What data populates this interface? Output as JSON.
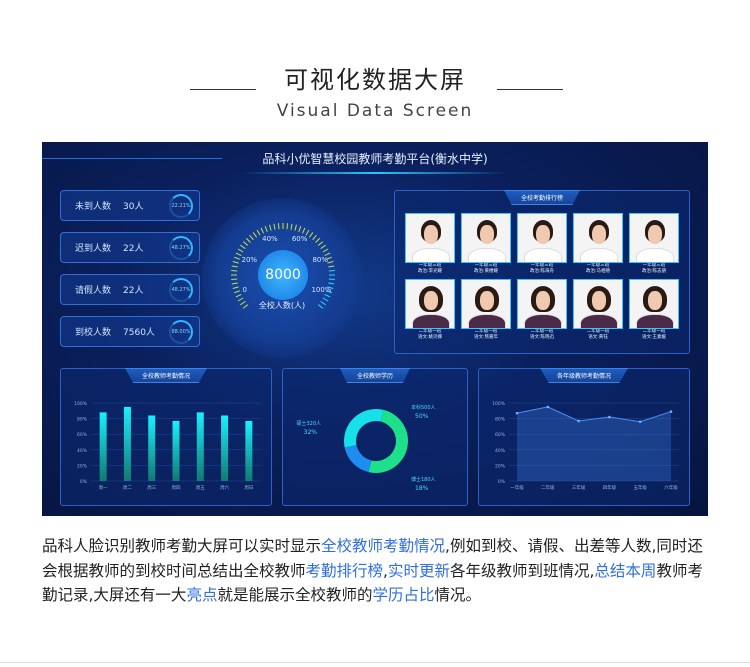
{
  "header": {
    "title": "可视化数据大屏",
    "subtitle": "Visual Data Screen"
  },
  "dashboard": {
    "title": "品科小优智慧校园教师考勤平台(衡水中学)",
    "stats": [
      {
        "label": "未到人数",
        "value": "30人",
        "percent": "22.21%"
      },
      {
        "label": "迟到人数",
        "value": "22人",
        "percent": "48.27%"
      },
      {
        "label": "请假人数",
        "value": "22人",
        "percent": "48.27%"
      },
      {
        "label": "到校人数",
        "value": "7560人",
        "percent": "88.00%"
      }
    ],
    "gauge": {
      "value": "8000",
      "label": "全校人数(人)",
      "ticks": [
        "0",
        "20%",
        "40%",
        "60%",
        "80%",
        "100%"
      ]
    },
    "ranking": {
      "title": "全校考勤排行榜",
      "teachers": [
        {
          "grade": "一年级三班",
          "name": "政治:李光耀",
          "gender": "m"
        },
        {
          "grade": "一年级三班",
          "name": "政治:黄楼耀",
          "gender": "m"
        },
        {
          "grade": "一年级三班",
          "name": "政治:陈海舟",
          "gender": "m"
        },
        {
          "grade": "一年级三班",
          "name": "政治:马相德",
          "gender": "m"
        },
        {
          "grade": "一年级三班",
          "name": "政治:陈志朋",
          "gender": "m"
        },
        {
          "grade": "二年级一班",
          "name": "语文:姚贝娜",
          "gender": "f"
        },
        {
          "grade": "二年级一班",
          "name": "语文:熊嘉年",
          "gender": "f"
        },
        {
          "grade": "二年级一班",
          "name": "语文:陈晓迅",
          "gender": "f"
        },
        {
          "grade": "二年级一班",
          "name": "语文:黄钰",
          "gender": "f"
        },
        {
          "grade": "二年级一班",
          "name": "语文:王素媛",
          "gender": "f"
        }
      ]
    }
  },
  "chart_data": [
    {
      "type": "bar",
      "title": "全校教师考勤情况",
      "categories": [
        "周一",
        "周二",
        "周三",
        "周四",
        "周五",
        "周六",
        "周日"
      ],
      "values": [
        88,
        95,
        84,
        77,
        88,
        84,
        77
      ],
      "yticks": [
        "0%",
        "20%",
        "40%",
        "60%",
        "80%",
        "100%"
      ],
      "ylim": [
        0,
        100
      ],
      "grid": true
    },
    {
      "type": "pie",
      "title": "全校教师学历",
      "slices": [
        {
          "label": "本科500人",
          "percent": "50%",
          "value": 50,
          "color": "#1fe08a"
        },
        {
          "label": "博士180人",
          "percent": "18%",
          "value": 18,
          "color": "#1f8cf0"
        },
        {
          "label": "硕士320人",
          "percent": "32%",
          "value": 32,
          "color": "#16e0e8"
        }
      ]
    },
    {
      "type": "area",
      "title": "各年级教师考勤情况",
      "categories": [
        "一年级",
        "二年级",
        "三年级",
        "四年级",
        "五年级",
        "六年级"
      ],
      "values": [
        87,
        95,
        77,
        82,
        76,
        89
      ],
      "yticks": [
        "0%",
        "20%",
        "40%",
        "60%",
        "80%",
        "100%"
      ],
      "ylim": [
        0,
        100
      ],
      "grid": true
    }
  ],
  "description": {
    "segments": [
      {
        "t": "品科人脸识别教师考勤大屏可以实时显示",
        "b": false
      },
      {
        "t": "全校教师考勤情况",
        "b": true
      },
      {
        "t": ",例如到校、请假、出差等人数,同时还会根据教师的到校时间总结出全校教师",
        "b": false
      },
      {
        "t": "考勤排行榜",
        "b": true
      },
      {
        "t": ",",
        "b": false
      },
      {
        "t": "实时更新",
        "b": true
      },
      {
        "t": "各年级教师到班情况,",
        "b": false
      },
      {
        "t": "总结本周",
        "b": true
      },
      {
        "t": "教师考勤记录,大屏还有一大",
        "b": false
      },
      {
        "t": "亮点",
        "b": true
      },
      {
        "t": "就是能展示全校教师的",
        "b": false
      },
      {
        "t": "学历占比",
        "b": true
      },
      {
        "t": "情况。",
        "b": false
      }
    ]
  }
}
